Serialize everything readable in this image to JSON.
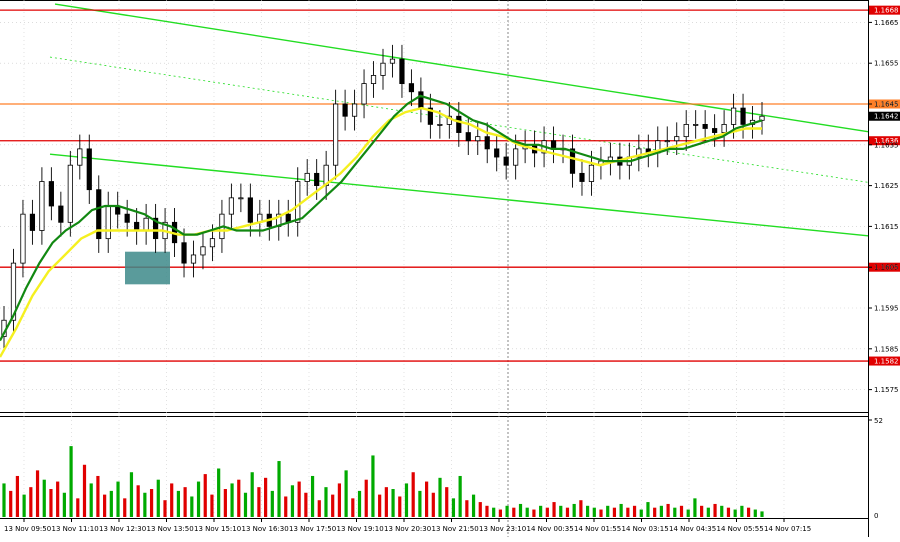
{
  "chart_data": {
    "type": "candlestick",
    "symbol_note": "",
    "price_axis": {
      "ylim": [
        1.157,
        1.167
      ],
      "ticks": [
        "1.1665",
        "1.1655",
        "1.1645",
        "1.1635",
        "1.1625",
        "1.1615",
        "1.1605",
        "1.1595",
        "1.1585",
        "1.1575"
      ],
      "tick_values": [
        1.1665,
        1.1655,
        1.1645,
        1.1635,
        1.1625,
        1.1615,
        1.1605,
        1.1595,
        1.1585,
        1.1575
      ]
    },
    "time_axis": {
      "ticks": [
        "13 Nov 09:50",
        "13 Nov 11:10",
        "13 Nov 12:30",
        "13 Nov 13:50",
        "13 Nov 15:10",
        "13 Nov 16:30",
        "13 Nov 17:50",
        "13 Nov 19:10",
        "13 Nov 20:30",
        "13 Nov 21:50",
        "13 Nov 23:10",
        "14 Nov 00:35",
        "14 Nov 01:55",
        "14 Nov 03:15",
        "14 Nov 04:35",
        "14 Nov 05:55",
        "14 Nov 07:15"
      ]
    },
    "horizontal_levels": [
      {
        "value": 1.1668,
        "label": "1.1668",
        "color": "#e00000"
      },
      {
        "value": 1.1645,
        "label": "1.1645",
        "color": "#ff7f27"
      },
      {
        "value": 1.1636,
        "label": "1.1636",
        "color": "#e00000"
      },
      {
        "value": 1.1605,
        "label": "1.1605",
        "color": "#e00000"
      },
      {
        "value": 1.1582,
        "label": "1.1582",
        "color": "#e00000"
      }
    ],
    "current_price": {
      "value": 1.1642,
      "label": "1.1642"
    },
    "trend_channel_color": "#22dd22",
    "ma_fast_color": "#118811",
    "ma_slow_color": "#f5f020",
    "bull_color": "#000000",
    "bear_color": "#000000",
    "volume_axis": {
      "max_label": "52",
      "zero_label": "0",
      "max": 52
    },
    "volume_up_color": "#00aa00",
    "volume_down_color": "#e00000",
    "entry_box_color": "#3d8a8a",
    "closes": [
      1.1592,
      1.1606,
      1.1618,
      1.1614,
      1.1626,
      1.162,
      1.1616,
      1.163,
      1.1634,
      1.1624,
      1.1612,
      1.162,
      1.1618,
      1.1616,
      1.1614,
      1.1617,
      1.1612,
      1.1616,
      1.1611,
      1.1606,
      1.1608,
      1.161,
      1.1612,
      1.1618,
      1.1622,
      1.1622,
      1.1616,
      1.1618,
      1.1615,
      1.1618,
      1.1616,
      1.1626,
      1.1628,
      1.1625,
      1.163,
      1.1645,
      1.1642,
      1.1645,
      1.165,
      1.1652,
      1.1655,
      1.1656,
      1.165,
      1.1648,
      1.1644,
      1.164,
      1.164,
      1.1642,
      1.1638,
      1.1636,
      1.1637,
      1.1634,
      1.1632,
      1.163,
      1.1634,
      1.1635,
      1.1633,
      1.1636,
      1.1634,
      1.1634,
      1.1628,
      1.1626,
      1.163,
      1.1631,
      1.1632,
      1.163,
      1.1632,
      1.1634,
      1.1633,
      1.1636,
      1.1636,
      1.1637,
      1.164,
      1.164,
      1.1639,
      1.1638,
      1.164,
      1.1644,
      1.164,
      1.1641,
      1.1642
    ],
    "fast_ma": [
      1.1587,
      1.1593,
      1.16,
      1.1606,
      1.1611,
      1.1614,
      1.1616,
      1.1619,
      1.162,
      1.162,
      1.1619,
      1.1618,
      1.1616,
      1.1615,
      1.1613,
      1.1613,
      1.1614,
      1.1615,
      1.1614,
      1.1614,
      1.1614,
      1.1615,
      1.1616,
      1.1617,
      1.162,
      1.1623,
      1.1626,
      1.163,
      1.1634,
      1.1638,
      1.1642,
      1.1645,
      1.1647,
      1.1646,
      1.1645,
      1.1643,
      1.1641,
      1.164,
      1.1638,
      1.1636,
      1.1635,
      1.1635,
      1.1634,
      1.1634,
      1.1633,
      1.1632,
      1.1631,
      1.1631,
      1.1631,
      1.1632,
      1.1633,
      1.1634,
      1.1634,
      1.1635,
      1.1636,
      1.1637,
      1.1639,
      1.164,
      1.1641
    ],
    "slow_ma": [
      1.1583,
      1.159,
      1.1598,
      1.1604,
      1.1608,
      1.1612,
      1.1614,
      1.1614,
      1.1614,
      1.1614,
      1.1614,
      1.1613,
      1.1613,
      1.1614,
      1.1614,
      1.1615,
      1.1616,
      1.1617,
      1.1619,
      1.1622,
      1.1625,
      1.1628,
      1.1632,
      1.1637,
      1.1641,
      1.1643,
      1.1644,
      1.1643,
      1.1641,
      1.164,
      1.1638,
      1.1637,
      1.1635,
      1.1634,
      1.1633,
      1.1632,
      1.1631,
      1.163,
      1.1631,
      1.1632,
      1.1633,
      1.1634,
      1.1635,
      1.1636,
      1.1637,
      1.1638,
      1.1639,
      1.1639
    ],
    "volumes": [
      18,
      14,
      22,
      12,
      16,
      25,
      20,
      15,
      19,
      13,
      38,
      10,
      28,
      18,
      22,
      12,
      14,
      19,
      10,
      24,
      17,
      13,
      15,
      20,
      9,
      18,
      14,
      16,
      11,
      19,
      23,
      12,
      26,
      15,
      18,
      20,
      13,
      24,
      16,
      21,
      14,
      30,
      11,
      17,
      19,
      13,
      22,
      9,
      16,
      12,
      18,
      25,
      10,
      14,
      20,
      33,
      12,
      16,
      15,
      11,
      18,
      24,
      14,
      19,
      13,
      21,
      16,
      10,
      22,
      9,
      12,
      8,
      6,
      5,
      4,
      6,
      5,
      7,
      5,
      4,
      6,
      5,
      8,
      6,
      5,
      7,
      9,
      6,
      5,
      4,
      6,
      5,
      7,
      5,
      6,
      4,
      8,
      5,
      6,
      7,
      5,
      6,
      4,
      10,
      6,
      5,
      7,
      6,
      5,
      4,
      6,
      5,
      4,
      3
    ],
    "volume_dirs": [
      1,
      0,
      0,
      1,
      0,
      0,
      1,
      0,
      0,
      1,
      1,
      0,
      0,
      1,
      0,
      0,
      1,
      1,
      0,
      1,
      0,
      1,
      0,
      1,
      0,
      0,
      1,
      0,
      1,
      1,
      0,
      0,
      1,
      0,
      1,
      0,
      1,
      1,
      0,
      0,
      1,
      1,
      0,
      1,
      0,
      0,
      1,
      0,
      1,
      0,
      0,
      1,
      0,
      1,
      0,
      1,
      0,
      0,
      1,
      0,
      1,
      0,
      1,
      0,
      0,
      1,
      0,
      1,
      1,
      0,
      1,
      0,
      0,
      1,
      0,
      1,
      0,
      1,
      1,
      0,
      1,
      0,
      0,
      1,
      0,
      1,
      0,
      1,
      1,
      0,
      1,
      0,
      1,
      0,
      0,
      1,
      1,
      0,
      1,
      0,
      1,
      0,
      1,
      1,
      0,
      1,
      0,
      1,
      0,
      1,
      1,
      0,
      1,
      1
    ]
  }
}
